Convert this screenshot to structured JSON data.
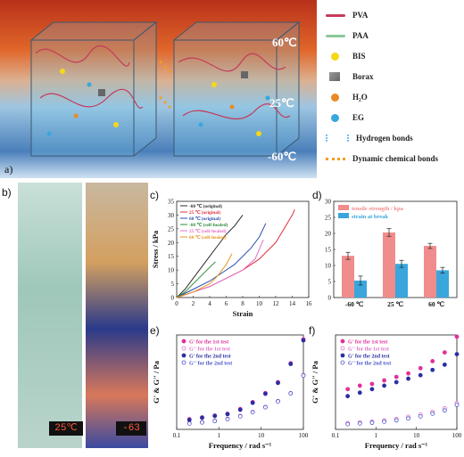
{
  "panels": {
    "a": {
      "label": "a)",
      "temps": [
        "60℃",
        "25℃",
        "-60℃"
      ],
      "legend": [
        {
          "label": "PVA",
          "color": "#c43b5a",
          "icon": "wavy-line"
        },
        {
          "label": "PAA",
          "color": "#8bc99a",
          "icon": "wavy-line"
        },
        {
          "label": "BIS",
          "color": "#f5d816",
          "icon": "dot"
        },
        {
          "label": "Borax",
          "color": "#666666",
          "icon": "cube"
        },
        {
          "label": "H₂O",
          "color": "#e98a25",
          "icon": "dot"
        },
        {
          "label": "EG",
          "color": "#3aa6dc",
          "icon": "dot"
        },
        {
          "label": "Hydrogen bonds",
          "color": "#6cc4ee",
          "icon": "dashes"
        },
        {
          "label": "Dynamic chemical bonds",
          "color": "#f0a020",
          "icon": "dots"
        }
      ]
    },
    "b": {
      "label": "b)",
      "readouts": [
        "25℃",
        "-63"
      ]
    },
    "c": {
      "label": "c)"
    },
    "d": {
      "label": "d)"
    },
    "e": {
      "label": "e)"
    },
    "f": {
      "label": "f)"
    }
  },
  "chart_data": [
    {
      "id": "c",
      "type": "line",
      "xlabel": "Strain",
      "ylabel": "Stress / kPa",
      "xlim": [
        0,
        16
      ],
      "ylim": [
        0,
        35
      ],
      "xticks": [
        "0",
        "2",
        "4",
        "6",
        "8",
        "10",
        "12",
        "14",
        "16"
      ],
      "yticks": [
        "0",
        "5",
        "10",
        "15",
        "20",
        "25",
        "30",
        "35"
      ],
      "legend_position": "top-left",
      "series": [
        {
          "name": "-60 ℃ (original)",
          "color": "#2b2b2b",
          "x": [
            0,
            1,
            2,
            3,
            4,
            5,
            6,
            7,
            7.5,
            8.0
          ],
          "y": [
            0,
            3,
            7,
            11,
            15,
            19,
            23,
            26,
            28,
            30
          ]
        },
        {
          "name": "25 ℃ (original)",
          "color": "#e0303a",
          "x": [
            0,
            2,
            4,
            6,
            8,
            10,
            12,
            13,
            14,
            14.3
          ],
          "y": [
            0,
            2,
            4,
            7,
            10,
            14,
            20,
            25,
            30,
            32
          ]
        },
        {
          "name": "60 ℃ (original)",
          "color": "#2a4fb0",
          "x": [
            0,
            2,
            4,
            6,
            7,
            8,
            9,
            10,
            10.8
          ],
          "y": [
            0,
            3,
            6,
            10,
            12,
            15,
            18,
            22,
            27
          ]
        },
        {
          "name": "-60 ℃ (self-healed)",
          "color": "#2e8b3a",
          "x": [
            0,
            1,
            2,
            3,
            4,
            4.7
          ],
          "y": [
            0,
            2,
            5,
            8,
            11,
            13
          ]
        },
        {
          "name": "25 ℃ (self-healed)",
          "color": "#e070c8",
          "x": [
            0,
            2,
            4,
            6,
            8,
            9.5,
            10.5
          ],
          "y": [
            0,
            2,
            4,
            7,
            10,
            14,
            21
          ]
        },
        {
          "name": "60 ℃ (self-healed)",
          "color": "#e89420",
          "x": [
            0,
            2,
            4,
            5,
            6,
            6.7
          ],
          "y": [
            0,
            2,
            5,
            8,
            12,
            16
          ]
        }
      ]
    },
    {
      "id": "d",
      "type": "bar",
      "categories": [
        "-60 ℃",
        "25 ℃",
        "60 ℃"
      ],
      "ylim": [
        0,
        30
      ],
      "yticks": [
        "0",
        "5",
        "10",
        "15",
        "20",
        "25",
        "30"
      ],
      "legend_position": "top-left",
      "series": [
        {
          "name": "tensile strength / kpa",
          "color": "#f08c8c",
          "values": [
            13.0,
            20.3,
            16.1
          ],
          "errors": [
            1.1,
            1.2,
            0.8
          ]
        },
        {
          "name": "strain at break",
          "color": "#3aa6dc",
          "values": [
            5.3,
            10.5,
            8.5
          ],
          "errors": [
            1.4,
            1.1,
            0.9
          ]
        }
      ]
    },
    {
      "id": "e",
      "type": "scatter",
      "xlabel": "Frequency / rad s⁻¹",
      "ylabel": "G' & G'' / Pa",
      "xscale": "log",
      "xlim": [
        0.1,
        100
      ],
      "ylim": [
        0,
        2600
      ],
      "xticks": [
        "0.1",
        "1",
        "10",
        "100"
      ],
      "legend_position": "top-left",
      "series": [
        {
          "name": "G' for the 1st test",
          "color": "#e0309a",
          "fill": true,
          "x": [
            0.2,
            0.4,
            0.8,
            1.6,
            3.2,
            6.3,
            12.6,
            25,
            50,
            100
          ],
          "y": [
            280,
            330,
            380,
            430,
            560,
            750,
            1000,
            1300,
            1820,
            2480
          ]
        },
        {
          "name": "G'' for the 1st test",
          "color": "#e070c8",
          "fill": false,
          "x": [
            0.2,
            0.4,
            0.8,
            1.6,
            3.2,
            6.3,
            12.6,
            25,
            50,
            100
          ],
          "y": [
            170,
            200,
            240,
            290,
            370,
            480,
            620,
            780,
            1000,
            1500
          ]
        },
        {
          "name": "G' for the 2nd test",
          "color": "#2b2fa0",
          "fill": true,
          "x": [
            0.2,
            0.4,
            0.8,
            1.6,
            3.2,
            6.3,
            12.6,
            25,
            50,
            100
          ],
          "y": [
            260,
            320,
            370,
            420,
            540,
            730,
            980,
            1280,
            1800,
            2450
          ]
        },
        {
          "name": "G'' for the 2nd test",
          "color": "#4a55c8",
          "fill": false,
          "x": [
            0.2,
            0.4,
            0.8,
            1.6,
            3.2,
            6.3,
            12.6,
            25,
            50,
            100
          ],
          "y": [
            160,
            190,
            230,
            280,
            360,
            470,
            610,
            770,
            990,
            1480
          ]
        }
      ]
    },
    {
      "id": "f",
      "type": "scatter",
      "xlabel": "Frequency / rad s⁻¹",
      "ylabel": "G' & G'' / Pa",
      "xscale": "log",
      "xlim": [
        0.1,
        100
      ],
      "ylim": [
        0,
        2700
      ],
      "xticks": [
        "0.1",
        "1",
        "10",
        "100"
      ],
      "legend_position": "top-left",
      "series": [
        {
          "name": "G' for the 1st test",
          "color": "#e0309a",
          "fill": true,
          "x": [
            0.2,
            0.4,
            0.8,
            1.6,
            3.2,
            6.3,
            12.6,
            25,
            50,
            100
          ],
          "y": [
            1150,
            1250,
            1300,
            1400,
            1500,
            1600,
            1750,
            1950,
            2200,
            2650
          ]
        },
        {
          "name": "G'' for the 1st test",
          "color": "#e070c8",
          "fill": false,
          "x": [
            0.2,
            0.4,
            0.8,
            1.6,
            3.2,
            6.3,
            12.6,
            25,
            50,
            100
          ],
          "y": [
            180,
            200,
            220,
            260,
            300,
            360,
            420,
            500,
            600,
            750
          ]
        },
        {
          "name": "G' for the 2nd test",
          "color": "#2b2fa0",
          "fill": true,
          "x": [
            0.2,
            0.4,
            0.8,
            1.6,
            3.2,
            6.3,
            12.6,
            25,
            50,
            100
          ],
          "y": [
            950,
            1050,
            1150,
            1250,
            1350,
            1450,
            1550,
            1700,
            1850,
            2150
          ]
        },
        {
          "name": "G'' for the 2nd test",
          "color": "#4a55c8",
          "fill": false,
          "x": [
            0.2,
            0.4,
            0.8,
            1.6,
            3.2,
            6.3,
            12.6,
            25,
            50,
            100
          ],
          "y": [
            150,
            170,
            190,
            220,
            260,
            310,
            370,
            450,
            540,
            700
          ]
        }
      ]
    }
  ]
}
